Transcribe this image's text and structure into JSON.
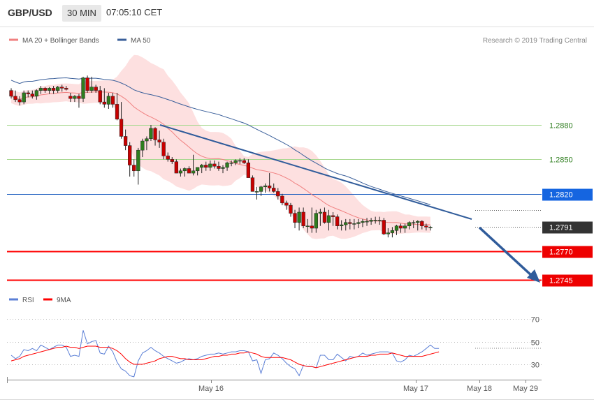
{
  "header": {
    "symbol": "GBP/USD",
    "timeframe": "30 MIN",
    "time": "07:05:10 CET"
  },
  "colors": {
    "bull": "#2e7d1e",
    "bear": "#c80000",
    "ma20": "#f08080",
    "ma50": "#3a5f9a",
    "band_fill": "#fde0e0",
    "support": "#ff0000",
    "resistance_line": "#2060c0",
    "green_line": "#a8d890",
    "trend_arrow": "#2f5b9a",
    "rsi": "#5b7fd6",
    "rsi_ma": "#ff0000"
  },
  "chart_data": [
    {
      "type": "candlestick",
      "legend": [
        {
          "name": "MA 20 + Bollinger Bands",
          "color": "#f08080"
        },
        {
          "name": "MA 50",
          "color": "#3a5f9a"
        }
      ],
      "credit": "Research © 2019 Trading Central",
      "ylim": [
        2.2728,
        1.2935
      ],
      "price_levels": [
        {
          "value": 1.288,
          "label": "1.2880",
          "style": "green"
        },
        {
          "value": 1.285,
          "label": "1.2850",
          "style": "green"
        },
        {
          "value": 1.282,
          "label": "1.2820",
          "style": "blue"
        },
        {
          "value": 1.2791,
          "label": "1.2791",
          "style": "current"
        },
        {
          "value": 1.277,
          "label": "1.2770",
          "style": "red"
        },
        {
          "value": 1.2745,
          "label": "1.2745",
          "style": "red"
        }
      ],
      "open": [
        1.291,
        1.2905,
        1.2902,
        1.29,
        1.2908,
        1.2907,
        1.2905,
        1.291,
        1.2912,
        1.291,
        1.2912,
        1.291,
        1.2913,
        1.2912,
        1.2905,
        1.2903,
        1.2905,
        1.2903,
        1.2921,
        1.291,
        1.2913,
        1.291,
        1.29,
        1.2898,
        1.2905,
        1.2898,
        1.2885,
        1.287,
        1.2862,
        1.2845,
        1.284,
        1.2858,
        1.2866,
        1.2868,
        1.2877,
        1.2867,
        1.2865,
        1.2853,
        1.285,
        1.2848,
        1.2838,
        1.284,
        1.2842,
        1.2838,
        1.284,
        1.2843,
        1.2845,
        1.2843,
        1.2846,
        1.2844,
        1.2842,
        1.2843,
        1.2847,
        1.2847,
        1.2849,
        1.2849,
        1.2847,
        1.2834,
        1.2822,
        1.2822,
        1.2826,
        1.2827,
        1.2825,
        1.2822,
        1.2818,
        1.2812,
        1.281,
        1.2803,
        1.2795,
        1.2804,
        1.2792,
        1.2792,
        1.279,
        1.2803,
        1.2804,
        1.2795,
        1.2801,
        1.28,
        1.2792,
        1.2793,
        1.2795,
        1.2794,
        1.2794,
        1.2795,
        1.2796,
        1.2796,
        1.2797,
        1.2797,
        1.2797,
        1.2785,
        1.2786,
        1.2788,
        1.2792,
        1.279,
        1.2792,
        1.2795,
        1.2795,
        1.2796,
        1.2792,
        1.2791
      ],
      "high": [
        1.2912,
        1.291,
        1.2905,
        1.291,
        1.291,
        1.291,
        1.2911,
        1.2914,
        1.2913,
        1.2913,
        1.2914,
        1.2914,
        1.2915,
        1.2914,
        1.2908,
        1.2906,
        1.2907,
        1.2922,
        1.2923,
        1.2922,
        1.2915,
        1.2914,
        1.2912,
        1.2908,
        1.2908,
        1.2908,
        1.29,
        1.2876,
        1.2865,
        1.285,
        1.286,
        1.2868,
        1.287,
        1.288,
        1.2878,
        1.2875,
        1.2868,
        1.2856,
        1.2852,
        1.285,
        1.2842,
        1.2843,
        1.2844,
        1.2854,
        1.2843,
        1.2846,
        1.2848,
        1.2849,
        1.2849,
        1.2848,
        1.2845,
        1.2848,
        1.2849,
        1.285,
        1.2851,
        1.2851,
        1.285,
        1.2836,
        1.2826,
        1.2827,
        1.2829,
        1.2838,
        1.2829,
        1.2825,
        1.282,
        1.2814,
        1.2812,
        1.2806,
        1.2808,
        1.2808,
        1.2798,
        1.2808,
        1.2806,
        1.2807,
        1.2808,
        1.2806,
        1.2804,
        1.2802,
        1.2797,
        1.2798,
        1.2798,
        1.2798,
        1.2798,
        1.2798,
        1.2799,
        1.2799,
        1.28,
        1.28,
        1.2799,
        1.279,
        1.2791,
        1.2793,
        1.2794,
        1.2794,
        1.2796,
        1.2797,
        1.2797,
        1.2797,
        1.2794,
        1.2792
      ],
      "low": [
        1.2903,
        1.29,
        1.2897,
        1.2898,
        1.2904,
        1.2903,
        1.2902,
        1.2907,
        1.2908,
        1.2907,
        1.2907,
        1.2908,
        1.2909,
        1.291,
        1.29,
        1.29,
        1.2895,
        1.29,
        1.2908,
        1.2908,
        1.2908,
        1.2898,
        1.2895,
        1.2894,
        1.2895,
        1.2884,
        1.2868,
        1.2858,
        1.2835,
        1.2835,
        1.2828,
        1.2852,
        1.2858,
        1.2866,
        1.2862,
        1.286,
        1.285,
        1.2848,
        1.2846,
        1.2838,
        1.2835,
        1.2835,
        1.2838,
        1.2836,
        1.2836,
        1.2838,
        1.284,
        1.284,
        1.2842,
        1.284,
        1.2838,
        1.284,
        1.2844,
        1.2845,
        1.2846,
        1.2846,
        1.2834,
        1.2822,
        1.2815,
        1.2818,
        1.2821,
        1.2822,
        1.2821,
        1.2815,
        1.281,
        1.2806,
        1.28,
        1.279,
        1.2788,
        1.279,
        1.2786,
        1.2786,
        1.2786,
        1.2792,
        1.2794,
        1.2788,
        1.2792,
        1.2789,
        1.2788,
        1.2788,
        1.2789,
        1.2789,
        1.279,
        1.2791,
        1.2792,
        1.2793,
        1.2794,
        1.2793,
        1.2784,
        1.2782,
        1.2782,
        1.2784,
        1.2786,
        1.2786,
        1.2789,
        1.279,
        1.2788,
        1.2789,
        1.2788,
        1.2788
      ],
      "close": [
        1.2905,
        1.2902,
        1.29,
        1.2908,
        1.2907,
        1.2905,
        1.291,
        1.2912,
        1.291,
        1.2912,
        1.291,
        1.2913,
        1.2912,
        1.2911,
        1.2903,
        1.2905,
        1.2903,
        1.2921,
        1.291,
        1.2913,
        1.291,
        1.29,
        1.2898,
        1.2905,
        1.2898,
        1.2885,
        1.287,
        1.2862,
        1.2845,
        1.284,
        1.2858,
        1.2866,
        1.2868,
        1.2877,
        1.2867,
        1.2865,
        1.2853,
        1.285,
        1.2848,
        1.2838,
        1.284,
        1.2842,
        1.2838,
        1.284,
        1.2843,
        1.2845,
        1.2843,
        1.2846,
        1.2844,
        1.2842,
        1.2843,
        1.2847,
        1.2847,
        1.2849,
        1.2849,
        1.2847,
        1.2834,
        1.2822,
        1.2822,
        1.2826,
        1.2827,
        1.2825,
        1.2822,
        1.2818,
        1.2812,
        1.281,
        1.2803,
        1.2795,
        1.2804,
        1.2792,
        1.2792,
        1.279,
        1.2803,
        1.2804,
        1.2795,
        1.2801,
        1.28,
        1.2792,
        1.2793,
        1.2795,
        1.2794,
        1.2794,
        1.2795,
        1.2796,
        1.2796,
        1.2797,
        1.2797,
        1.2797,
        1.2785,
        1.2786,
        1.2788,
        1.2792,
        1.279,
        1.2792,
        1.2795,
        1.2795,
        1.2796,
        1.2792,
        1.2791,
        1.2791
      ]
    },
    {
      "type": "line",
      "legend": [
        {
          "name": "RSI",
          "color": "#5b7fd6"
        },
        {
          "name": "9MA",
          "color": "#ff0000"
        }
      ],
      "ylim": [
        18,
        78
      ],
      "yticks": [
        70,
        50,
        30
      ],
      "x_labels": [
        "May 16",
        "May 17",
        "May 18",
        "May 29"
      ],
      "rsi": [
        38,
        35,
        37,
        43,
        42,
        44,
        42,
        47,
        45,
        43,
        45,
        47,
        47,
        45,
        37,
        38,
        37,
        60,
        48,
        50,
        51,
        40,
        39,
        46,
        41,
        32,
        26,
        24,
        20,
        19,
        33,
        40,
        42,
        45,
        42,
        40,
        37,
        35,
        33,
        31,
        32,
        34,
        35,
        34,
        35,
        37,
        38,
        39,
        39,
        40,
        39,
        40,
        41,
        41,
        42,
        42,
        41,
        33,
        34,
        22,
        34,
        35,
        40,
        38,
        35,
        31,
        28,
        26,
        20,
        29,
        28,
        28,
        27,
        38,
        38,
        34,
        34,
        39,
        36,
        33,
        37,
        36,
        37,
        40,
        38,
        39,
        40,
        41,
        41,
        41,
        40,
        33,
        32,
        34,
        38,
        37,
        39,
        41,
        44,
        47,
        44,
        44
      ],
      "rsi_ma": [
        33,
        34,
        35,
        37,
        38,
        39,
        40,
        41,
        42,
        43,
        44,
        45,
        45,
        46,
        45,
        45,
        44,
        45,
        46,
        46,
        46,
        45,
        45,
        45,
        44,
        42,
        39,
        35,
        32,
        30,
        30,
        30,
        31,
        32,
        33,
        35,
        36,
        37,
        37,
        36,
        35,
        35,
        34,
        34,
        34,
        34,
        35,
        36,
        37,
        37,
        38,
        38,
        39,
        39,
        40,
        40,
        41,
        40,
        39,
        37,
        36,
        36,
        36,
        36,
        36,
        35,
        34,
        32,
        30,
        29,
        28,
        28,
        27,
        28,
        29,
        30,
        31,
        32,
        33,
        34,
        35,
        36,
        37,
        37,
        37,
        38,
        38,
        39,
        39,
        39,
        40,
        39,
        38,
        37,
        37,
        37,
        37,
        37,
        38,
        39,
        40,
        41
      ]
    }
  ]
}
